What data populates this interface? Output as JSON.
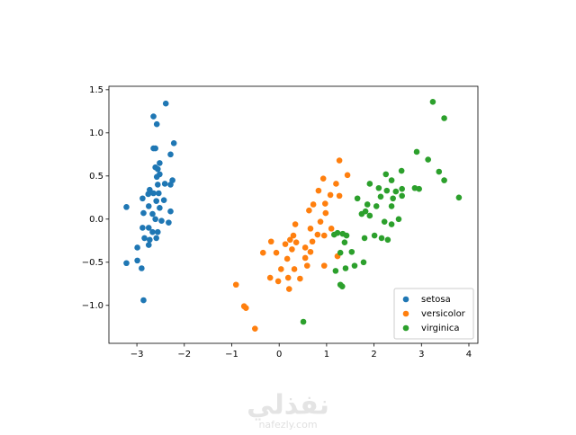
{
  "chart_data": {
    "type": "scatter",
    "xlim": [
      -3.59,
      4.19
    ],
    "ylim": [
      -1.44,
      1.54
    ],
    "xticks": [
      {
        "value": -3,
        "label": "−3"
      },
      {
        "value": -2,
        "label": "−2"
      },
      {
        "value": -1,
        "label": "−1"
      },
      0,
      1,
      2,
      3,
      4
    ],
    "yticks": [
      {
        "value": -1.0,
        "label": "−1.0"
      },
      {
        "value": -0.5,
        "label": "−0.5"
      },
      {
        "value": 0.0,
        "label": "0.0"
      },
      0.5,
      {
        "value": 1.0,
        "label": "1.0"
      },
      1.5
    ],
    "legend": "lower right",
    "series": [
      {
        "name": "setosa",
        "color": "#1f77b4",
        "x": [
          -2.39,
          -2.65,
          -2.58,
          -2.22,
          -2.65,
          -2.61,
          -2.29,
          -2.52,
          -2.61,
          -2.56,
          -2.52,
          -2.58,
          -2.25,
          -2.41,
          -2.29,
          -2.73,
          -2.56,
          -2.76,
          -2.65,
          -2.54,
          -2.88,
          -2.59,
          -2.43,
          -3.22,
          -2.75,
          -2.52,
          -2.67,
          -2.86,
          -2.29,
          -2.61,
          -2.48,
          -2.33,
          -2.88,
          -2.75,
          -2.67,
          -2.56,
          -2.84,
          -2.73,
          -2.59,
          -2.99,
          -2.75,
          -3.22,
          -2.99,
          -2.9,
          -2.86
        ],
        "y": [
          1.34,
          1.19,
          1.1,
          0.88,
          0.82,
          0.82,
          0.75,
          0.65,
          0.6,
          0.58,
          0.52,
          0.49,
          0.45,
          0.41,
          0.4,
          0.34,
          0.4,
          0.29,
          0.3,
          0.3,
          0.24,
          0.21,
          0.22,
          0.14,
          0.15,
          0.13,
          0.06,
          0.07,
          0.09,
          0.0,
          -0.02,
          -0.04,
          -0.1,
          -0.1,
          -0.15,
          -0.15,
          -0.22,
          -0.24,
          -0.22,
          -0.33,
          -0.3,
          -0.51,
          -0.48,
          -0.57,
          -0.94
        ]
      },
      {
        "name": "versicolor",
        "color": "#ff7f0e",
        "x": [
          1.27,
          1.44,
          0.93,
          1.2,
          0.83,
          1.08,
          1.27,
          0.72,
          0.97,
          0.63,
          0.98,
          0.87,
          0.34,
          0.66,
          1.1,
          0.81,
          0.95,
          0.3,
          0.23,
          -0.17,
          0.13,
          0.36,
          0.7,
          0.27,
          0.55,
          0.66,
          -0.34,
          -0.06,
          0.17,
          0.55,
          0.95,
          0.59,
          0.32,
          0.04,
          -0.19,
          -0.02,
          0.19,
          0.21,
          -0.91,
          -0.74,
          -0.7,
          -0.51,
          0.44,
          1.23
        ],
        "y": [
          0.68,
          0.51,
          0.47,
          0.41,
          0.33,
          0.28,
          0.27,
          0.17,
          0.18,
          0.1,
          0.07,
          -0.03,
          -0.06,
          -0.11,
          -0.11,
          -0.18,
          -0.19,
          -0.19,
          -0.24,
          -0.26,
          -0.29,
          -0.27,
          -0.26,
          -0.35,
          -0.33,
          -0.38,
          -0.39,
          -0.39,
          -0.46,
          -0.45,
          -0.54,
          -0.54,
          -0.58,
          -0.58,
          -0.68,
          -0.72,
          -0.68,
          -0.81,
          -0.76,
          -1.01,
          -1.03,
          -1.27,
          -0.69,
          -0.43
        ]
      },
      {
        "name": "virginica",
        "color": "#2ca02c",
        "x": [
          3.24,
          3.48,
          2.9,
          3.14,
          2.58,
          3.37,
          2.25,
          1.91,
          2.1,
          2.37,
          2.27,
          2.46,
          2.59,
          2.86,
          2.95,
          3.48,
          3.79,
          1.65,
          2.14,
          2.4,
          2.59,
          1.86,
          2.05,
          2.37,
          1.82,
          1.91,
          1.74,
          2.22,
          2.52,
          2.37,
          1.23,
          1.34,
          1.42,
          1.16,
          1.8,
          2.01,
          2.16,
          2.29,
          1.38,
          1.29,
          1.53,
          1.78,
          1.4,
          1.59,
          1.19,
          1.29,
          1.33,
          0.51
        ],
        "y": [
          1.36,
          1.17,
          0.78,
          0.69,
          0.56,
          0.55,
          0.52,
          0.41,
          0.36,
          0.45,
          0.33,
          0.32,
          0.35,
          0.36,
          0.35,
          0.45,
          0.25,
          0.24,
          0.26,
          0.24,
          0.27,
          0.17,
          0.15,
          0.15,
          0.09,
          0.04,
          0.06,
          -0.03,
          0.0,
          -0.06,
          -0.16,
          -0.17,
          -0.19,
          -0.18,
          -0.22,
          -0.19,
          -0.22,
          -0.24,
          -0.27,
          -0.39,
          -0.38,
          -0.5,
          -0.57,
          -0.54,
          -0.6,
          -0.76,
          -0.78,
          -1.19
        ]
      }
    ]
  },
  "watermark": {
    "logo": "نفذلي",
    "site": "nafezly.com"
  }
}
